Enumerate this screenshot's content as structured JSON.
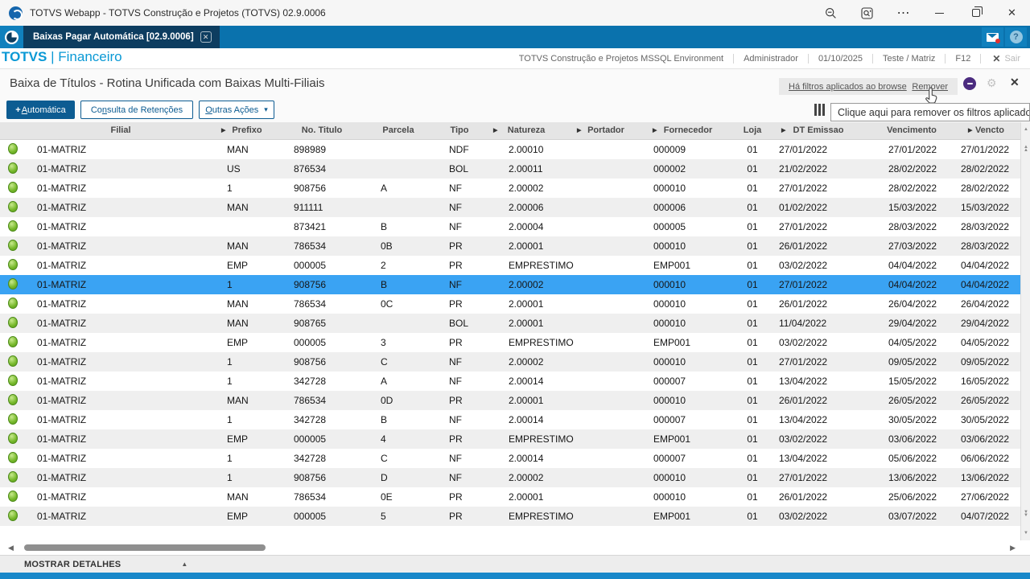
{
  "window": {
    "title": "TOTVS Webapp - TOTVS Construção e Projetos (TOTVS) 02.9.0006"
  },
  "tab_bar": {
    "tab_label": "Baixas Pagar Automática [02.9.0006]"
  },
  "app_header": {
    "brand": "TOTVS",
    "divider": "|",
    "module": "Financeiro",
    "segments": [
      "TOTVS Construção e Projetos MSSQL Environment",
      "Administrador",
      "01/10/2025",
      "Teste / Matriz",
      "F12"
    ],
    "exit_label": "Sair"
  },
  "page": {
    "title": "Baixa de Títulos - Rotina Unificada com Baixas Multi-Filiais"
  },
  "filter_bar": {
    "applied_link": "Há filtros aplicados ao browse",
    "remove_link": "Remover"
  },
  "tooltip": {
    "text": "Clique aqui para remover os filtros aplicados"
  },
  "toolbar": {
    "automatica": {
      "plus": "+",
      "pre": "",
      "key": "A",
      "post": "utomática"
    },
    "consulta": {
      "pre": "Co",
      "key": "n",
      "post": "sulta de Retenções"
    },
    "outras": {
      "pre": "",
      "key": "O",
      "post": "utras Ações"
    }
  },
  "table": {
    "columns": [
      {
        "label": "",
        "arrow": false
      },
      {
        "label": "Filial",
        "arrow": false
      },
      {
        "label": "Prefixo",
        "arrow": true
      },
      {
        "label": "No. Titulo",
        "arrow": false
      },
      {
        "label": "Parcela",
        "arrow": false
      },
      {
        "label": "Tipo",
        "arrow": false
      },
      {
        "label": "Natureza",
        "arrow": true
      },
      {
        "label": "Portador",
        "arrow": true
      },
      {
        "label": "Fornecedor",
        "arrow": true
      },
      {
        "label": "Loja",
        "arrow": false
      },
      {
        "label": "DT Emissao",
        "arrow": true
      },
      {
        "label": "Vencimento",
        "arrow": false
      },
      {
        "label": "Vencto",
        "arrow": true
      }
    ],
    "column_keys": [
      "filial",
      "prefixo",
      "titulo",
      "parcela",
      "tipo",
      "natureza",
      "portador",
      "fornecedor",
      "loja",
      "dt-emissao",
      "vencimento",
      "vencto-real"
    ],
    "selected_index": 7,
    "rows": [
      [
        "01-MATRIZ",
        "MAN",
        "898989",
        "",
        "NDF",
        "2.00010",
        "",
        "000009",
        "01",
        "27/01/2022",
        "27/01/2022",
        "27/01/2022"
      ],
      [
        "01-MATRIZ",
        "US",
        "876534",
        "",
        "BOL",
        "2.00011",
        "",
        "000002",
        "01",
        "21/02/2022",
        "28/02/2022",
        "28/02/2022"
      ],
      [
        "01-MATRIZ",
        "1",
        "908756",
        "A",
        "NF",
        "2.00002",
        "",
        "000010",
        "01",
        "27/01/2022",
        "28/02/2022",
        "28/02/2022"
      ],
      [
        "01-MATRIZ",
        "MAN",
        "911111",
        "",
        "NF",
        "2.00006",
        "",
        "000006",
        "01",
        "01/02/2022",
        "15/03/2022",
        "15/03/2022"
      ],
      [
        "01-MATRIZ",
        "",
        "873421",
        "B",
        "NF",
        "2.00004",
        "",
        "000005",
        "01",
        "27/01/2022",
        "28/03/2022",
        "28/03/2022"
      ],
      [
        "01-MATRIZ",
        "MAN",
        "786534",
        "0B",
        "PR",
        "2.00001",
        "",
        "000010",
        "01",
        "26/01/2022",
        "27/03/2022",
        "28/03/2022"
      ],
      [
        "01-MATRIZ",
        "EMP",
        "000005",
        "2",
        "PR",
        "EMPRESTIMO",
        "",
        "EMP001",
        "01",
        "03/02/2022",
        "04/04/2022",
        "04/04/2022"
      ],
      [
        "01-MATRIZ",
        "1",
        "908756",
        "B",
        "NF",
        "2.00002",
        "",
        "000010",
        "01",
        "27/01/2022",
        "04/04/2022",
        "04/04/2022"
      ],
      [
        "01-MATRIZ",
        "MAN",
        "786534",
        "0C",
        "PR",
        "2.00001",
        "",
        "000010",
        "01",
        "26/01/2022",
        "26/04/2022",
        "26/04/2022"
      ],
      [
        "01-MATRIZ",
        "MAN",
        "908765",
        "",
        "BOL",
        "2.00001",
        "",
        "000010",
        "01",
        "11/04/2022",
        "29/04/2022",
        "29/04/2022"
      ],
      [
        "01-MATRIZ",
        "EMP",
        "000005",
        "3",
        "PR",
        "EMPRESTIMO",
        "",
        "EMP001",
        "01",
        "03/02/2022",
        "04/05/2022",
        "04/05/2022"
      ],
      [
        "01-MATRIZ",
        "1",
        "908756",
        "C",
        "NF",
        "2.00002",
        "",
        "000010",
        "01",
        "27/01/2022",
        "09/05/2022",
        "09/05/2022"
      ],
      [
        "01-MATRIZ",
        "1",
        "342728",
        "A",
        "NF",
        "2.00014",
        "",
        "000007",
        "01",
        "13/04/2022",
        "15/05/2022",
        "16/05/2022"
      ],
      [
        "01-MATRIZ",
        "MAN",
        "786534",
        "0D",
        "PR",
        "2.00001",
        "",
        "000010",
        "01",
        "26/01/2022",
        "26/05/2022",
        "26/05/2022"
      ],
      [
        "01-MATRIZ",
        "1",
        "342728",
        "B",
        "NF",
        "2.00014",
        "",
        "000007",
        "01",
        "13/04/2022",
        "30/05/2022",
        "30/05/2022"
      ],
      [
        "01-MATRIZ",
        "EMP",
        "000005",
        "4",
        "PR",
        "EMPRESTIMO",
        "",
        "EMP001",
        "01",
        "03/02/2022",
        "03/06/2022",
        "03/06/2022"
      ],
      [
        "01-MATRIZ",
        "1",
        "342728",
        "C",
        "NF",
        "2.00014",
        "",
        "000007",
        "01",
        "13/04/2022",
        "05/06/2022",
        "06/06/2022"
      ],
      [
        "01-MATRIZ",
        "1",
        "908756",
        "D",
        "NF",
        "2.00002",
        "",
        "000010",
        "01",
        "27/01/2022",
        "13/06/2022",
        "13/06/2022"
      ],
      [
        "01-MATRIZ",
        "MAN",
        "786534",
        "0E",
        "PR",
        "2.00001",
        "",
        "000010",
        "01",
        "26/01/2022",
        "25/06/2022",
        "27/06/2022"
      ],
      [
        "01-MATRIZ",
        "EMP",
        "000005",
        "5",
        "PR",
        "EMPRESTIMO",
        "",
        "EMP001",
        "01",
        "03/02/2022",
        "03/07/2022",
        "04/07/2022"
      ]
    ]
  },
  "footer": {
    "details_label": "MOSTRAR DETALHES"
  },
  "icons": {
    "more": "⋯",
    "close": "✕",
    "tab_close": "✕",
    "help": "?",
    "settings": "⚙",
    "routine_close": "✕",
    "caret_down": "▾",
    "col_arrow": "▶",
    "scroll_left": "◀",
    "scroll_right": "▶",
    "scroll_up": "▲",
    "scroll_down": "▼",
    "details_up": "▲",
    "exit_x": "✕"
  },
  "colors": {
    "tab_bar_blue": "#0a72ad",
    "tab_dark": "#0d3d60",
    "brand_blue": "#0a99d5",
    "button_blue": "#0d5c92",
    "selected_row": "#3aa3f3",
    "status_green": "#76b82a",
    "purple_badge": "#4b2b7f",
    "bottom_strip": "#1887c9"
  }
}
